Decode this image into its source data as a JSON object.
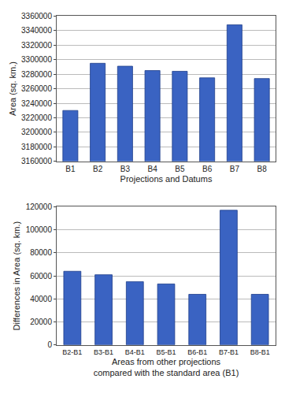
{
  "chart_data": [
    {
      "type": "bar",
      "x_label": "Projections and Datums",
      "y_label": "Area (sq. km.)",
      "categories": [
        "B1",
        "B2",
        "B3",
        "B4",
        "B5",
        "B6",
        "B7",
        "B8"
      ],
      "values": [
        3230000,
        3295000,
        3291000,
        3285000,
        3284000,
        3275000,
        3348000,
        3274000
      ],
      "color": "#3a63c2",
      "ylim": [
        3160000,
        3360000
      ],
      "yticks": [
        3160000,
        3180000,
        3200000,
        3220000,
        3240000,
        3260000,
        3280000,
        3300000,
        3320000,
        3340000,
        3360000
      ],
      "grid": true
    },
    {
      "type": "bar",
      "x_label": "Areas from other projections\ncompared with the standard area (B1)",
      "y_label": "Differences in Area (sq. km.)",
      "categories": [
        "B2-B1",
        "B3-B1",
        "B4-B1",
        "B5-B1",
        "B6-B1",
        "B7-B1",
        "B8-B1"
      ],
      "values": [
        64000,
        61000,
        55000,
        53000,
        44000,
        117000,
        44000
      ],
      "color": "#3a63c2",
      "ylim": [
        0,
        120000
      ],
      "yticks": [
        0,
        20000,
        40000,
        60000,
        80000,
        100000,
        120000
      ],
      "grid": true
    }
  ]
}
